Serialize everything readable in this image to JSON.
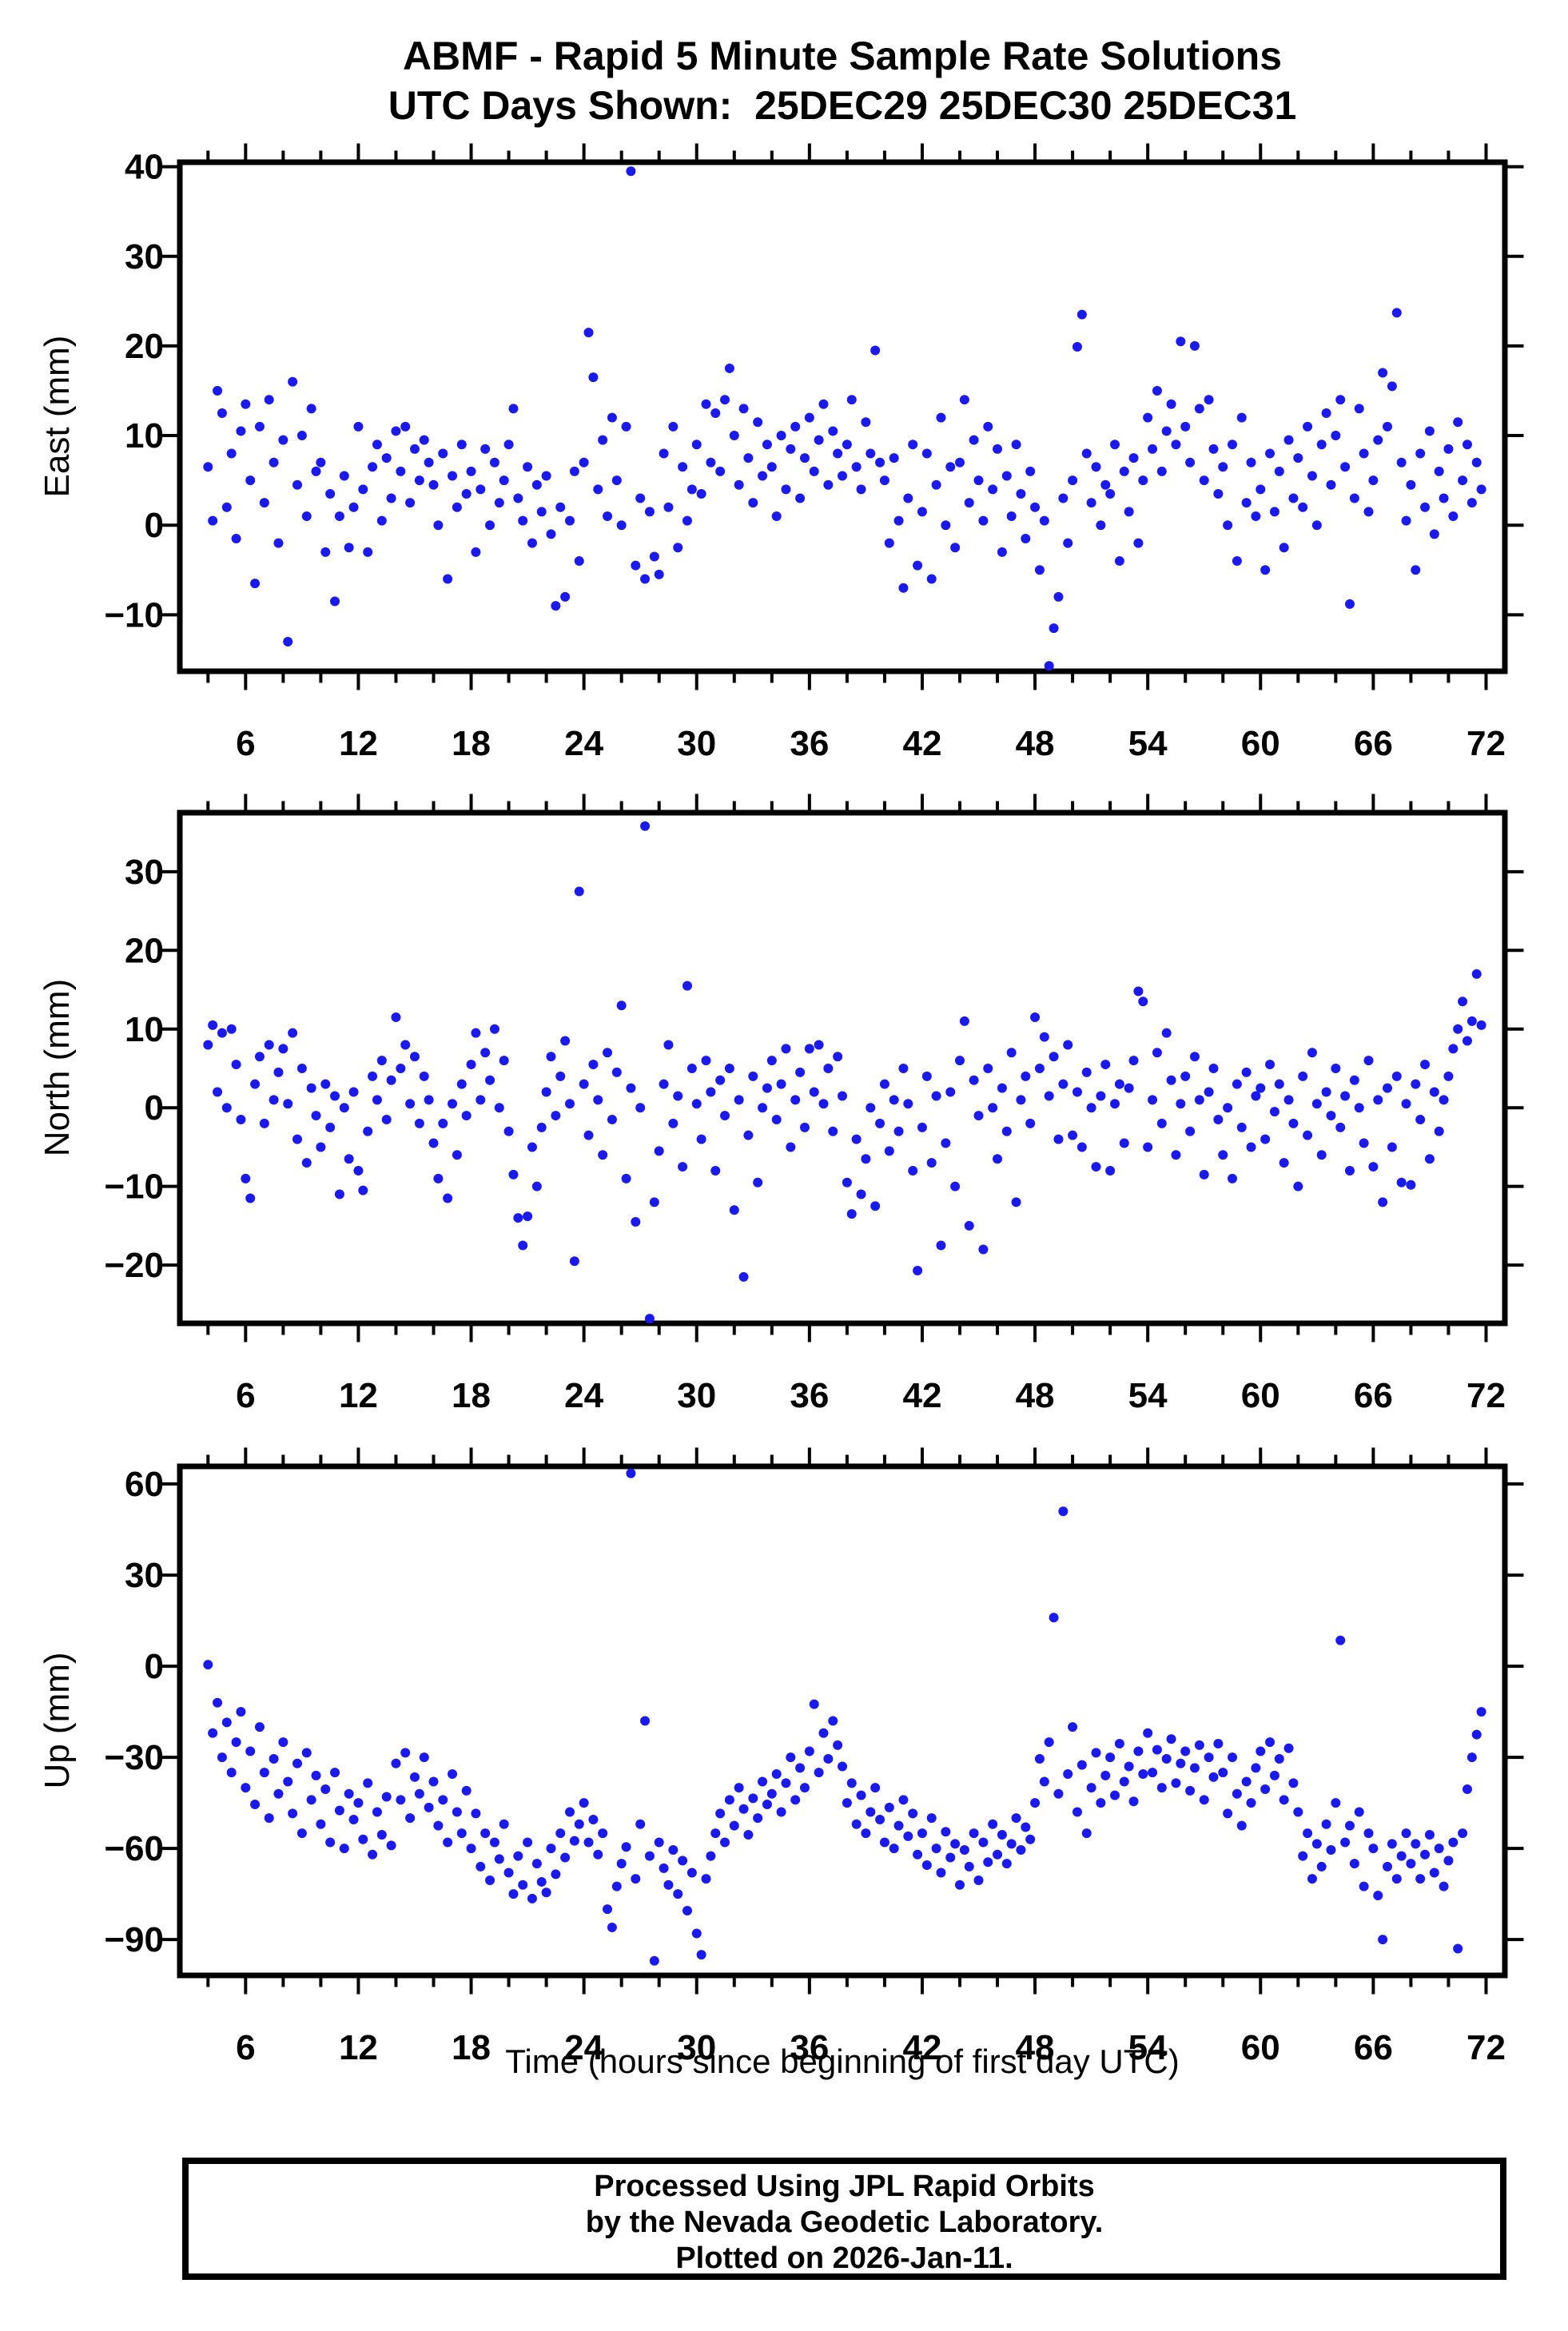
{
  "footer": {
    "line1": "Processed Using JPL Rapid Orbits",
    "line2": "by the Nevada Geodetic Laboratory.",
    "line3": "Plotted on 2026-Jan-11."
  },
  "chart_data": {
    "type": "scatter",
    "title": "ABMF - Rapid 5 Minute Sample Rate Solutions",
    "subtitle": "UTC Days Shown:  25DEC29 25DEC30 25DEC31",
    "xlabel": "Time (hours since beginning of first day UTC)",
    "marker": {
      "shape": "circle",
      "color": "#1a1af0",
      "radius_px": 6
    },
    "axis_color": "#000000",
    "grid": false,
    "legend": "none",
    "xlim": [
      2.5,
      73
    ],
    "x_major_ticks": [
      6,
      12,
      18,
      24,
      30,
      36,
      42,
      48,
      54,
      60,
      66,
      72
    ],
    "x_minor_step": 2,
    "subplots": [
      {
        "name": "east",
        "ylabel": "East (mm)",
        "ylim": [
          -16.3,
          40.5
        ],
        "yticks": [
          -10,
          0,
          10,
          20,
          30,
          40
        ],
        "x_start": 4,
        "x_step": 0.25,
        "y": [
          6.5,
          0.5,
          15,
          12.5,
          2,
          8,
          -1.5,
          10.5,
          13.5,
          5,
          -6.5,
          11,
          2.5,
          14,
          7,
          -2,
          9.5,
          -13,
          16,
          4.5,
          10,
          1,
          13,
          6,
          7,
          -3,
          3.5,
          -8.5,
          1,
          5.5,
          -2.5,
          2,
          11,
          4,
          -3,
          6.5,
          9,
          0.5,
          7.5,
          3,
          10.5,
          6,
          11,
          2.5,
          8.5,
          5,
          9.5,
          7,
          4.5,
          0,
          8,
          -6,
          5.5,
          2,
          9,
          3.5,
          6,
          -3,
          4,
          8.5,
          0,
          7,
          2.5,
          5,
          9,
          13,
          3,
          0.5,
          6.5,
          -2,
          4.5,
          1.5,
          5.5,
          -1,
          -9,
          2,
          -8,
          0.5,
          6,
          -4,
          7,
          21.5,
          16.5,
          4,
          9.5,
          1,
          12,
          5,
          0,
          11,
          39.5,
          -4.5,
          3,
          -6,
          1.5,
          -3.5,
          -5.5,
          8,
          2,
          11,
          -2.5,
          6.5,
          0.5,
          4,
          9,
          3.5,
          13.5,
          7,
          12.5,
          6,
          14,
          17.5,
          10,
          4.5,
          13,
          7.5,
          2.5,
          11.5,
          5.5,
          9,
          6.5,
          1,
          10,
          4,
          8.5,
          11,
          3,
          7.5,
          12,
          6,
          9.5,
          13.5,
          4.5,
          10.5,
          8,
          5.5,
          9,
          14,
          6.5,
          4,
          11.5,
          8,
          19.5,
          7,
          5,
          -2,
          7.5,
          0.5,
          -7,
          3,
          9,
          -4.5,
          1.5,
          8,
          -6,
          4.5,
          12,
          0,
          6.5,
          -2.5,
          7,
          14,
          2.5,
          9.5,
          5,
          0.5,
          11,
          4,
          8.5,
          -3,
          5.5,
          1,
          9,
          3.5,
          -1.5,
          6,
          2,
          -5,
          0.5,
          -15.7,
          -11.5,
          -8,
          3,
          -2,
          5,
          19.9,
          23.5,
          8,
          2.5,
          6.5,
          0,
          4.5,
          3.5,
          9,
          -4,
          6,
          1.5,
          7.5,
          -2,
          5,
          12,
          8.5,
          15,
          6,
          10.5,
          13.5,
          9,
          20.5,
          11,
          7,
          20,
          13,
          5,
          14,
          8.5,
          3.5,
          6.5,
          0,
          9,
          -4,
          12,
          2.5,
          7,
          1,
          4,
          -5,
          8,
          1.5,
          6,
          -2.5,
          9.5,
          3,
          7.5,
          2,
          11,
          5.5,
          0,
          9,
          12.5,
          4.5,
          10,
          14,
          6.5,
          -8.8,
          3,
          13,
          8,
          1.5,
          5,
          9.5,
          17,
          11,
          15.5,
          23.7,
          7,
          0.5,
          4.5,
          -5,
          8,
          2,
          10.5,
          -1,
          6,
          3,
          8.5,
          1,
          11.5,
          5,
          9,
          2.5,
          7,
          4
        ]
      },
      {
        "name": "north",
        "ylabel": "North (mm)",
        "ylim": [
          -27.4,
          37.5
        ],
        "yticks": [
          -20,
          -10,
          0,
          10,
          20,
          30
        ],
        "x_start": 4,
        "x_step": 0.25,
        "y": [
          8,
          10.5,
          2,
          9.5,
          0,
          10,
          5.5,
          -1.5,
          -9,
          -11.5,
          3,
          6.5,
          -2,
          8,
          1,
          4.5,
          7.5,
          0.5,
          9.5,
          -4,
          5,
          -7,
          2.5,
          -1,
          -5,
          3,
          -2.5,
          1.5,
          -11,
          0,
          -6.5,
          2,
          -8,
          -10.5,
          -3,
          4,
          1,
          6,
          -1.5,
          3.5,
          11.5,
          5,
          8,
          0.5,
          6.5,
          -2,
          4,
          1,
          -4.5,
          -9,
          -2,
          -11.5,
          0.5,
          -6,
          3,
          -1,
          5.5,
          9.5,
          1,
          7,
          3.5,
          10,
          0,
          6,
          -3,
          -8.5,
          -14,
          -17.5,
          -13.8,
          -5,
          -10,
          -2.5,
          2,
          6.5,
          -1,
          4,
          8.5,
          0.5,
          -19.5,
          27.5,
          3,
          -3.5,
          5.5,
          1,
          -6,
          7,
          -1.5,
          4.5,
          13,
          -9,
          2.5,
          -14.5,
          0,
          35.8,
          -26.8,
          -12,
          -5.5,
          3,
          8,
          -2,
          1.5,
          -7.5,
          15.5,
          5,
          0.5,
          -4,
          6,
          2,
          -8,
          3.5,
          -1,
          5,
          -13,
          1,
          -21.5,
          -3.5,
          4,
          -9.5,
          0,
          2.5,
          6,
          -1.5,
          3,
          7.5,
          -5,
          1,
          4.5,
          -2.5,
          7.5,
          2,
          8,
          0.5,
          5,
          -3,
          6.5,
          1.5,
          -9.5,
          -13.5,
          -4,
          -11,
          -6.5,
          0,
          -12.5,
          -2,
          3,
          -5.5,
          1,
          -3,
          5,
          0.5,
          -8,
          -20.7,
          -2.5,
          4,
          -7,
          1.5,
          -17.5,
          -4.5,
          2,
          -10,
          6,
          11,
          -15,
          3.5,
          -1,
          -18,
          5,
          0,
          -6.5,
          2.5,
          -3,
          7,
          -12,
          1,
          4,
          -2,
          11.5,
          5,
          9,
          1.5,
          6.5,
          -4,
          3,
          8,
          -3.5,
          2,
          -5,
          4.5,
          0,
          -7.5,
          1.5,
          5.5,
          -8,
          0.5,
          3,
          -4.5,
          2.5,
          6,
          14.8,
          13.5,
          -5,
          1,
          7,
          -2,
          9.5,
          3.5,
          -6,
          0.5,
          4,
          -3,
          6.5,
          1,
          -8.5,
          2,
          5,
          -1.5,
          -6,
          0,
          -9,
          3,
          -2.5,
          4.5,
          -5,
          1.5,
          2.5,
          -4,
          5.5,
          -0.5,
          3,
          -7,
          1,
          -2,
          -10,
          4,
          -3.5,
          7,
          0.5,
          -6,
          2,
          -1,
          5,
          -2.5,
          1.5,
          -8,
          3.5,
          0,
          -4.5,
          6,
          -7.5,
          1,
          -12,
          2.5,
          -5,
          4,
          -9.5,
          0.5,
          -9.8,
          3,
          -1.5,
          5.5,
          -6.5,
          2,
          -3,
          1,
          4,
          7.5,
          10,
          13.5,
          8.5,
          11,
          17,
          10.5
        ]
      },
      {
        "name": "up",
        "ylabel": "Up (mm)",
        "ylim": [
          -101.8,
          65.8
        ],
        "yticks": [
          -90,
          -60,
          -30,
          0,
          30,
          60
        ],
        "x_start": 4,
        "x_step": 0.25,
        "y": [
          0.5,
          -22,
          -12,
          -30,
          -18.5,
          -35,
          -25,
          -15,
          -40,
          -28,
          -45.5,
          -20,
          -35,
          -50,
          -30.5,
          -42,
          -25,
          -38,
          -48.5,
          -32,
          -55,
          -28.5,
          -44,
          -36,
          -52,
          -40.5,
          -58,
          -35,
          -47.5,
          -60,
          -42,
          -50.5,
          -45,
          -57,
          -38.5,
          -62,
          -48,
          -55.5,
          -43,
          -59,
          -32,
          -44,
          -28.5,
          -50,
          -36.5,
          -42,
          -30,
          -46.5,
          -38,
          -52.5,
          -44,
          -58,
          -35.5,
          -48,
          -55,
          -41,
          -60,
          -48.5,
          -66,
          -55,
          -70.5,
          -58,
          -63.5,
          -52,
          -68,
          -75,
          -62.5,
          -72,
          -58,
          -76.5,
          -65,
          -71,
          -74.5,
          -60,
          -68.5,
          -55,
          -63,
          -48,
          -57.5,
          -52,
          -45,
          -58,
          -50.5,
          -62,
          -55,
          -80,
          -86,
          -72.5,
          -65,
          -59.5,
          63.5,
          -70,
          -52,
          -18,
          -62.5,
          -97,
          -58,
          -66.5,
          -72,
          -60.5,
          -75,
          -64,
          -80.5,
          -68,
          -88,
          -95,
          -70,
          -62.5,
          -55,
          -48.5,
          -58,
          -44,
          -52.5,
          -40,
          -47,
          -55.5,
          -43.5,
          -50,
          -38,
          -45.5,
          -42,
          -35.5,
          -48,
          -38.5,
          -30,
          -44,
          -33.5,
          -40,
          -28,
          -12.5,
          -35,
          -22,
          -30.5,
          -18,
          -26,
          -33,
          -45,
          -38.5,
          -52,
          -42.5,
          -55,
          -48,
          -40,
          -50.5,
          -58,
          -46.5,
          -60,
          -52.5,
          -44,
          -56,
          -48.5,
          -62,
          -55,
          -65.5,
          -50,
          -60,
          -68,
          -54.5,
          -63,
          -58.5,
          -72,
          -60.5,
          -66,
          -55,
          -70.5,
          -58,
          -64.5,
          -52,
          -62,
          -55.5,
          -65,
          -58.5,
          -50,
          -60.5,
          -53,
          -57,
          -45,
          -30.5,
          -38,
          -25,
          16,
          -42,
          51,
          -35.5,
          -20,
          -48,
          -32.5,
          -55,
          -40,
          -28.5,
          -45,
          -36,
          -30,
          -42.5,
          -25.5,
          -38,
          -33,
          -44.5,
          -28,
          -35.5,
          -22,
          -35,
          -27.5,
          -40,
          -30.5,
          -24,
          -38.5,
          -32,
          -28,
          -41,
          -33.5,
          -26,
          -44,
          -30,
          -36.5,
          -25.5,
          -35,
          -48.5,
          -30,
          -42,
          -52.5,
          -38,
          -45,
          -33.5,
          -28,
          -40.5,
          -25,
          -36,
          -30.5,
          -44,
          -27,
          -38.5,
          -48,
          -62.5,
          -55,
          -70,
          -58.5,
          -66,
          -52,
          -60.5,
          -45,
          8.5,
          -58,
          -52.5,
          -65,
          -48,
          -72.5,
          -55,
          -60,
          -75.5,
          -90,
          -66,
          -58.5,
          -70,
          -62.5,
          -55,
          -65,
          -58.5,
          -70,
          -62,
          -55.5,
          -68,
          -60,
          -72.5,
          -64,
          -58,
          -93,
          -55,
          -40.5,
          -30,
          -22.5,
          -15
        ]
      }
    ]
  }
}
